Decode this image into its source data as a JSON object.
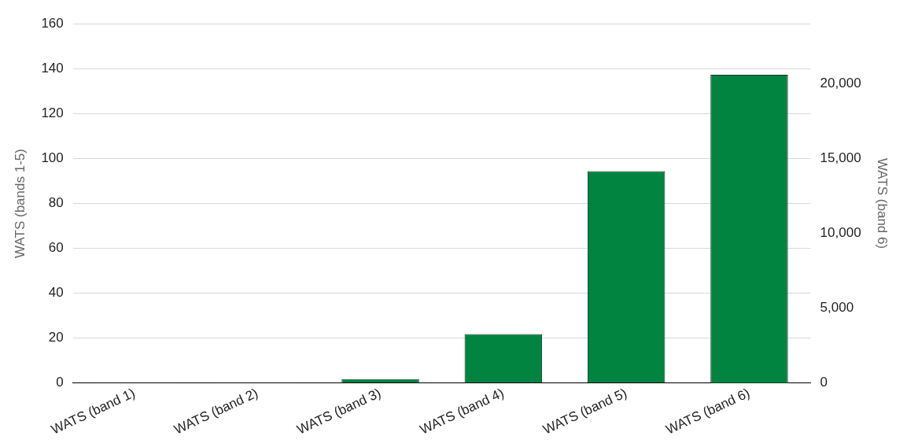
{
  "chart_data": {
    "type": "bar",
    "ylabel": "WATS (bands 1-5)",
    "y2label": "WATS (band 6)",
    "categories": [
      "WATS (band 1)",
      "WATS (band 2)",
      "WATS (band 3)",
      "WATS (band 4)",
      "WATS (band 5)",
      "WATS (band 6)"
    ],
    "series": [
      {
        "color": "#00843f",
        "values": [
          0.3,
          0.3,
          1.8,
          21.8,
          94.4,
          null
        ]
      },
      {
        "color": "#00843f",
        "axis": "y2",
        "values": [
          null,
          null,
          null,
          null,
          null,
          20600
        ]
      }
    ],
    "ylim": [
      0,
      160
    ],
    "yticks": [
      0,
      20,
      40,
      60,
      80,
      100,
      120,
      140,
      160
    ],
    "y2lim": [
      0,
      24000
    ],
    "y2ticks": [
      {
        "value": 0,
        "label": "0"
      },
      {
        "value": 5000,
        "label": "5,000"
      },
      {
        "value": 10000,
        "label": "10,000"
      },
      {
        "value": 15000,
        "label": "15,000"
      },
      {
        "value": 20000,
        "label": "20,000"
      }
    ],
    "grid": "y",
    "legend": false
  }
}
